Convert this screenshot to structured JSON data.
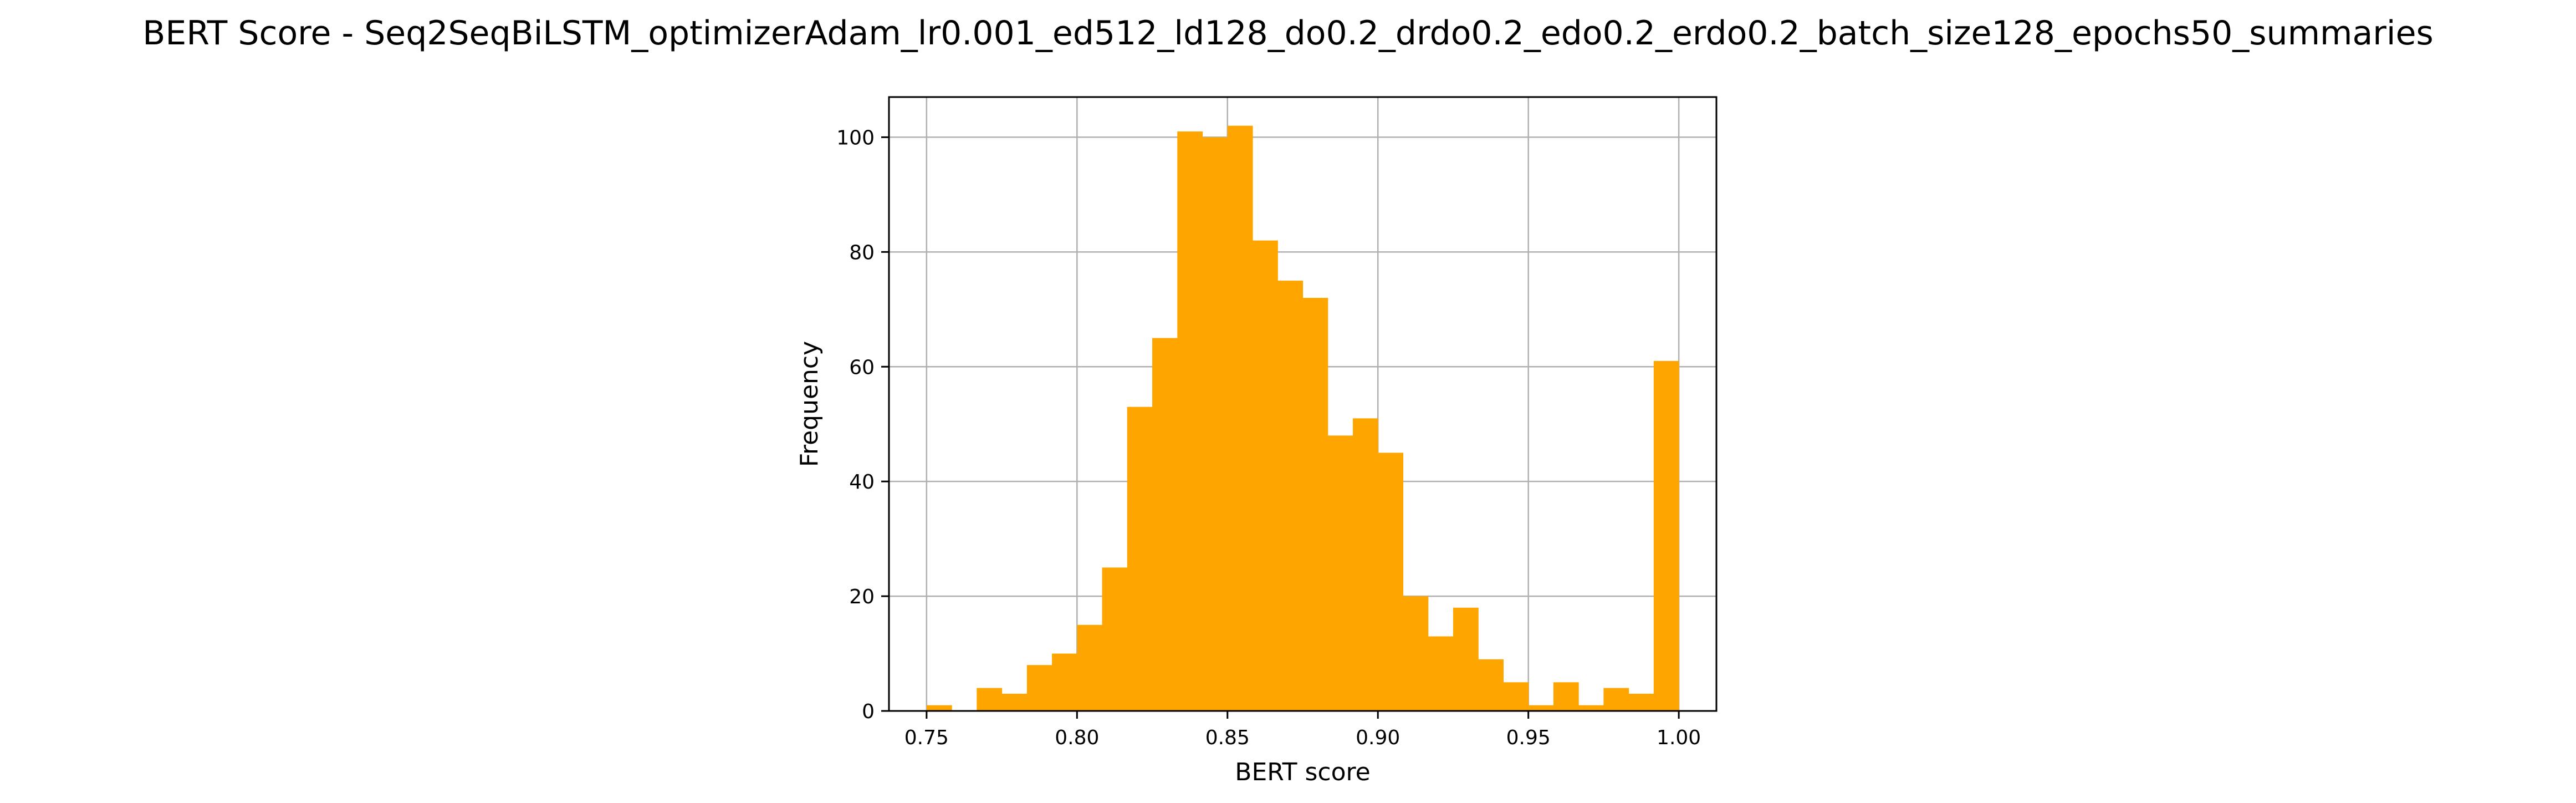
{
  "colors": {
    "bar": "#ffa500",
    "grid": "#b0b0b0",
    "axis": "#000000",
    "text": "#000000",
    "background": "#ffffff"
  },
  "chart_data": {
    "type": "bar",
    "title": "BERT Score - Seq2SeqBiLSTM_optimizerAdam_lr0.001_ed512_ld128_do0.2_drdo0.2_edo0.2_erdo0.2_batch_size128_epochs50_summaries",
    "xlabel": "BERT score",
    "ylabel": "Frequency",
    "xlim": [
      0.7375,
      1.0125
    ],
    "ylim": [
      0,
      107
    ],
    "grid": true,
    "xticks": [
      0.75,
      0.8,
      0.85,
      0.9,
      0.95,
      1.0
    ],
    "xtick_labels": [
      "0.75",
      "0.80",
      "0.85",
      "0.90",
      "0.95",
      "1.00"
    ],
    "yticks": [
      0,
      20,
      40,
      60,
      80,
      100
    ],
    "ytick_labels": [
      "0",
      "20",
      "40",
      "60",
      "80",
      "100"
    ],
    "bin_start": 0.75,
    "bin_width": 0.008333,
    "values": [
      1,
      0,
      4,
      3,
      8,
      10,
      15,
      25,
      53,
      65,
      101,
      100,
      102,
      82,
      75,
      72,
      48,
      51,
      45,
      20,
      13,
      18,
      9,
      5,
      1,
      5,
      1,
      4,
      3,
      61
    ]
  }
}
